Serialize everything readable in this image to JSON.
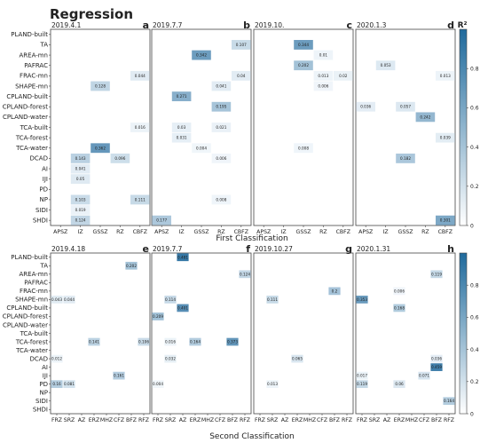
{
  "figure": {
    "title": "Regression",
    "top_axis_title": "First Classification",
    "bottom_axis_title": "Second Classification",
    "colorbar_label": "R²",
    "colorbar_ticks": [
      "0",
      "0.2",
      "0.4",
      "0.6",
      "0.8"
    ],
    "colors": {
      "low": "#f2f7fb",
      "high": "#2f73a3",
      "frame": "#444444"
    }
  },
  "chart_data": [
    {
      "type": "heatmap",
      "group": "first",
      "panel_letter": "a",
      "title": "2019.4.1",
      "columns": [
        "APSZ",
        "IZ",
        "GSSZ",
        "RZ",
        "CBFZ"
      ],
      "rows": [
        "PLAND-built",
        "TA",
        "AREA-mn",
        "PAFRAC",
        "FRAC-mn",
        "SHAPE-mn",
        "CPLAND-built",
        "CPLAND-forest",
        "CPLAND-water",
        "TCA-built",
        "TCA-forest",
        "TCA-water",
        "DCAD",
        "AI",
        "IJI",
        "PD",
        "NP",
        "SIDI",
        "SHDI"
      ],
      "cells": [
        {
          "row": "FRAC-mn",
          "col": "CBFZ",
          "value": 0.044
        },
        {
          "row": "SHAPE-mn",
          "col": "GSSZ",
          "value": 0.128
        },
        {
          "row": "TCA-built",
          "col": "CBFZ",
          "value": 0.016
        },
        {
          "row": "TCA-water",
          "col": "GSSZ",
          "value": 0.362
        },
        {
          "row": "DCAD",
          "col": "IZ",
          "value": 0.143
        },
        {
          "row": "DCAD",
          "col": "RZ",
          "value": 0.096
        },
        {
          "row": "AI",
          "col": "IZ",
          "value": 0.041
        },
        {
          "row": "IJI",
          "col": "IZ",
          "value": 0.05
        },
        {
          "row": "NP",
          "col": "IZ",
          "value": 0.103
        },
        {
          "row": "NP",
          "col": "CBFZ",
          "value": 0.111
        },
        {
          "row": "SIDI",
          "col": "IZ",
          "value": 0.019
        },
        {
          "row": "SHDI",
          "col": "IZ",
          "value": 0.124
        }
      ]
    },
    {
      "type": "heatmap",
      "group": "first",
      "panel_letter": "b",
      "title": "2019.7.7",
      "columns": [
        "APSZ",
        "IZ",
        "GSSZ",
        "RZ",
        "CBFZ"
      ],
      "rows": [
        "PLAND-built",
        "TA",
        "AREA-mn",
        "PAFRAC",
        "FRAC-mn",
        "SHAPE-mn",
        "CPLAND-built",
        "CPLAND-forest",
        "CPLAND-water",
        "TCA-built",
        "TCA-forest",
        "TCA-water",
        "DCAD",
        "AI",
        "IJI",
        "PD",
        "NP",
        "SIDI",
        "SHDI"
      ],
      "cells": [
        {
          "row": "TA",
          "col": "CBFZ",
          "value": 0.107
        },
        {
          "row": "AREA-mn",
          "col": "GSSZ",
          "value": 0.342
        },
        {
          "row": "FRAC-mn",
          "col": "CBFZ",
          "value": 0.04
        },
        {
          "row": "SHAPE-mn",
          "col": "RZ",
          "value": 0.041
        },
        {
          "row": "CPLAND-built",
          "col": "IZ",
          "value": 0.271
        },
        {
          "row": "CPLAND-forest",
          "col": "RZ",
          "value": 0.195
        },
        {
          "row": "TCA-built",
          "col": "IZ",
          "value": 0.03
        },
        {
          "row": "TCA-built",
          "col": "RZ",
          "value": 0.021
        },
        {
          "row": "TCA-forest",
          "col": "IZ",
          "value": 0.031
        },
        {
          "row": "TCA-water",
          "col": "GSSZ",
          "value": 0.004
        },
        {
          "row": "DCAD",
          "col": "RZ",
          "value": 0.006
        },
        {
          "row": "NP",
          "col": "RZ",
          "value": 0.008
        },
        {
          "row": "SHDI",
          "col": "APSZ",
          "value": 0.177
        }
      ]
    },
    {
      "type": "heatmap",
      "group": "first",
      "panel_letter": "c",
      "title": "2019.10.",
      "columns": [
        "APSZ",
        "IZ",
        "GSSZ",
        "RZ",
        "CBFZ"
      ],
      "rows": [
        "PLAND-built",
        "TA",
        "AREA-mn",
        "PAFRAC",
        "FRAC-mn",
        "SHAPE-mn",
        "CPLAND-built",
        "CPLAND-forest",
        "CPLAND-water",
        "TCA-built",
        "TCA-forest",
        "TCA-water",
        "DCAD",
        "AI",
        "IJI",
        "PD",
        "NP",
        "SIDI",
        "SHDI"
      ],
      "cells": [
        {
          "row": "TA",
          "col": "GSSZ",
          "value": 0.344
        },
        {
          "row": "AREA-mn",
          "col": "RZ",
          "value": 0.01
        },
        {
          "row": "PAFRAC",
          "col": "GSSZ",
          "value": 0.202
        },
        {
          "row": "FRAC-mn",
          "col": "RZ",
          "value": 0.013
        },
        {
          "row": "FRAC-mn",
          "col": "CBFZ",
          "value": 0.02
        },
        {
          "row": "SHAPE-mn",
          "col": "RZ",
          "value": 0.006
        },
        {
          "row": "TCA-water",
          "col": "GSSZ",
          "value": 0.008
        }
      ]
    },
    {
      "type": "heatmap",
      "group": "first",
      "panel_letter": "d",
      "title": "2020.1.3",
      "columns": [
        "APSZ",
        "IZ",
        "GSSZ",
        "RZ",
        "CBFZ"
      ],
      "rows": [
        "PLAND-built",
        "TA",
        "AREA-mn",
        "PAFRAC",
        "FRAC-mn",
        "SHAPE-mn",
        "CPLAND-built",
        "CPLAND-forest",
        "CPLAND-water",
        "TCA-built",
        "TCA-forest",
        "TCA-water",
        "DCAD",
        "AI",
        "IJI",
        "PD",
        "NP",
        "SIDI",
        "SHDI"
      ],
      "cells": [
        {
          "row": "PAFRAC",
          "col": "IZ",
          "value": 0.053
        },
        {
          "row": "FRAC-mn",
          "col": "CBFZ",
          "value": 0.013
        },
        {
          "row": "CPLAND-forest",
          "col": "APSZ",
          "value": 0.036
        },
        {
          "row": "CPLAND-forest",
          "col": "GSSZ",
          "value": 0.057
        },
        {
          "row": "CPLAND-water",
          "col": "RZ",
          "value": 0.242
        },
        {
          "row": "TCA-forest",
          "col": "CBFZ",
          "value": 0.039
        },
        {
          "row": "DCAD",
          "col": "GSSZ",
          "value": 0.182
        },
        {
          "row": "SHDI",
          "col": "CBFZ",
          "value": 0.301
        }
      ]
    },
    {
      "type": "heatmap",
      "group": "second",
      "panel_letter": "e",
      "title": "2019.4.18",
      "columns": [
        "FRZ",
        "SRZ",
        "AZ",
        "ERZ",
        "MHZ",
        "CFZ",
        "BFZ",
        "RFZ"
      ],
      "rows": [
        "PLAND-built",
        "TA",
        "AREA-mn",
        "PAFRAC",
        "FRAC-mn",
        "SHAPE-mn",
        "CPLAND-built",
        "CPLAND-forest",
        "CPLAND-water",
        "TCA-built",
        "TCA-forest",
        "TCA-water",
        "DCAD",
        "AI",
        "IJI",
        "PD",
        "NP",
        "SIDI",
        "SHDI"
      ],
      "cells": [
        {
          "row": "TA",
          "col": "BFZ",
          "value": 0.202
        },
        {
          "row": "SHAPE-mn",
          "col": "FRZ",
          "value": 0.043
        },
        {
          "row": "SHAPE-mn",
          "col": "SRZ",
          "value": 0.044
        },
        {
          "row": "TCA-forest",
          "col": "ERZ",
          "value": 0.141
        },
        {
          "row": "TCA-forest",
          "col": "RFZ",
          "value": 0.106
        },
        {
          "row": "DCAD",
          "col": "FRZ",
          "value": 0.012
        },
        {
          "row": "IJI",
          "col": "CFZ",
          "value": 0.161
        },
        {
          "row": "PD",
          "col": "FRZ",
          "value": 0.16
        },
        {
          "row": "PD",
          "col": "SRZ",
          "value": 0.081
        }
      ]
    },
    {
      "type": "heatmap",
      "group": "second",
      "panel_letter": "f",
      "title": "2019.7.7",
      "columns": [
        "FRZ",
        "SRZ",
        "AZ",
        "ERZ",
        "MHZ",
        "CFZ",
        "BFZ",
        "RFZ"
      ],
      "rows": [
        "PLAND-built",
        "TA",
        "AREA-mn",
        "PAFRAC",
        "FRAC-mn",
        "SHAPE-mn",
        "CPLAND-built",
        "CPLAND-forest",
        "CPLAND-water",
        "TCA-built",
        "TCA-forest",
        "TCA-water",
        "DCAD",
        "AI",
        "IJI",
        "PD",
        "NP",
        "SIDI",
        "SHDI"
      ],
      "cells": [
        {
          "row": "PLAND-built",
          "col": "AZ",
          "value": 0.481
        },
        {
          "row": "AREA-mn",
          "col": "RFZ",
          "value": 0.124
        },
        {
          "row": "SHAPE-mn",
          "col": "SRZ",
          "value": 0.114
        },
        {
          "row": "CPLAND-built",
          "col": "AZ",
          "value": 0.401
        },
        {
          "row": "CPLAND-forest",
          "col": "FRZ",
          "value": 0.209
        },
        {
          "row": "TCA-forest",
          "col": "SRZ",
          "value": 0.016
        },
        {
          "row": "TCA-forest",
          "col": "ERZ",
          "value": 0.164
        },
        {
          "row": "TCA-forest",
          "col": "BFZ",
          "value": 0.373
        },
        {
          "row": "DCAD",
          "col": "SRZ",
          "value": 0.032
        },
        {
          "row": "PD",
          "col": "FRZ",
          "value": 0.004
        }
      ]
    },
    {
      "type": "heatmap",
      "group": "second",
      "panel_letter": "g",
      "title": "2019.10.27",
      "columns": [
        "FRZ",
        "SRZ",
        "AZ",
        "ERZ",
        "MHZ",
        "CFZ",
        "BFZ",
        "RFZ"
      ],
      "rows": [
        "PLAND-built",
        "TA",
        "AREA-mn",
        "PAFRAC",
        "FRAC-mn",
        "SHAPE-mn",
        "CPLAND-built",
        "CPLAND-forest",
        "CPLAND-water",
        "TCA-built",
        "TCA-forest",
        "TCA-water",
        "DCAD",
        "AI",
        "IJI",
        "PD",
        "NP",
        "SIDI",
        "SHDI"
      ],
      "cells": [
        {
          "row": "FRAC-mn",
          "col": "BFZ",
          "value": 0.2
        },
        {
          "row": "SHAPE-mn",
          "col": "SRZ",
          "value": 0.111
        },
        {
          "row": "DCAD",
          "col": "ERZ",
          "value": 0.065
        },
        {
          "row": "PD",
          "col": "SRZ",
          "value": 0.013
        }
      ]
    },
    {
      "type": "heatmap",
      "group": "second",
      "panel_letter": "h",
      "title": "2020.1.31",
      "columns": [
        "FRZ",
        "SRZ",
        "AZ",
        "ERZ",
        "MHZ",
        "CFZ",
        "BFZ",
        "RFZ"
      ],
      "rows": [
        "PLAND-built",
        "TA",
        "AREA-mn",
        "PAFRAC",
        "FRAC-mn",
        "SHAPE-mn",
        "CPLAND-built",
        "CPLAND-forest",
        "CPLAND-water",
        "TCA-built",
        "TCA-forest",
        "TCA-water",
        "DCAD",
        "AI",
        "IJI",
        "PD",
        "NP",
        "SIDI",
        "SHDI"
      ],
      "cells": [
        {
          "row": "AREA-mn",
          "col": "BFZ",
          "value": 0.119
        },
        {
          "row": "FRAC-mn",
          "col": "ERZ",
          "value": 0.006
        },
        {
          "row": "SHAPE-mn",
          "col": "FRZ",
          "value": 0.353
        },
        {
          "row": "CPLAND-built",
          "col": "ERZ",
          "value": 0.168
        },
        {
          "row": "DCAD",
          "col": "BFZ",
          "value": 0.036
        },
        {
          "row": "AI",
          "col": "BFZ",
          "value": 0.459
        },
        {
          "row": "IJI",
          "col": "FRZ",
          "value": 0.017
        },
        {
          "row": "IJI",
          "col": "CFZ",
          "value": 0.071
        },
        {
          "row": "PD",
          "col": "FRZ",
          "value": 0.119
        },
        {
          "row": "PD",
          "col": "ERZ",
          "value": 0.06
        },
        {
          "row": "SIDI",
          "col": "RFZ",
          "value": 0.164
        }
      ]
    }
  ]
}
